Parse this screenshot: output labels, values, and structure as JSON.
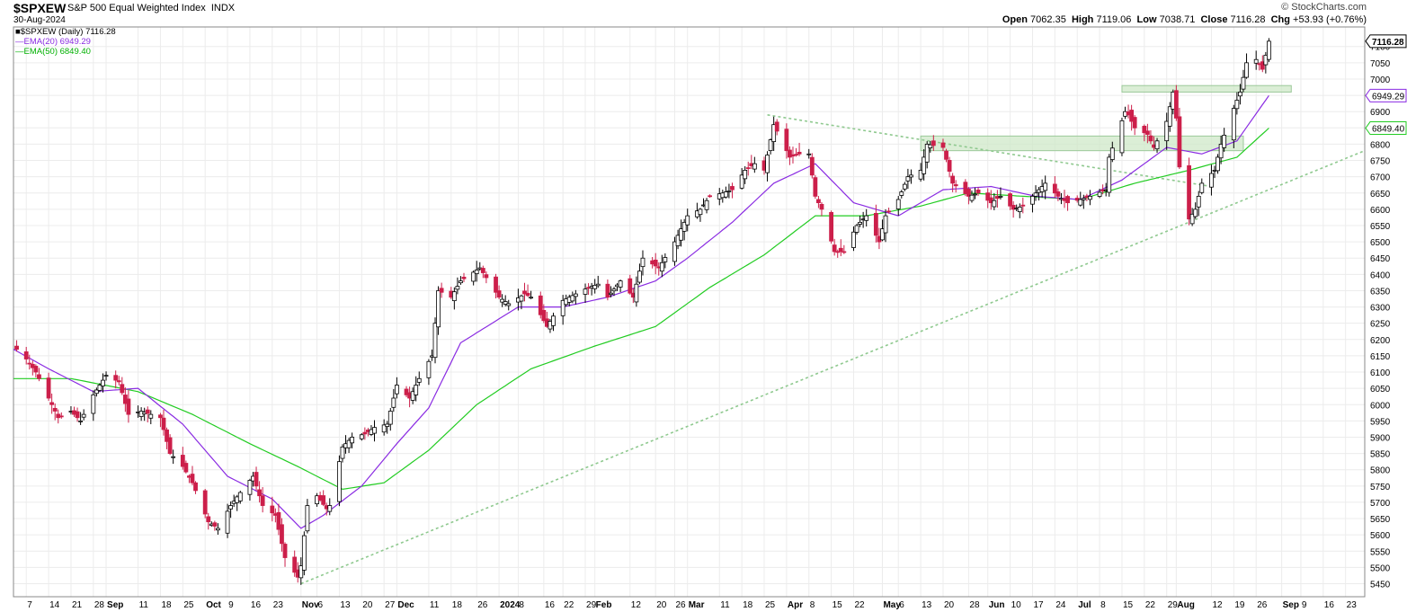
{
  "header": {
    "symbol": "$SPXEW",
    "index_name": "S&P 500 Equal Weighted Index",
    "exchange": "INDX",
    "date": "30-Aug-2024",
    "open_label": "Open",
    "open": "7062.35",
    "high_label": "High",
    "high": "7119.06",
    "low_label": "Low",
    "low": "7038.71",
    "close_label": "Close",
    "close": "7116.28",
    "chg_label": "Chg",
    "chg": "+53.93 (+0.76%)",
    "brand": "© StockCharts.com"
  },
  "legend": {
    "price": "$SPXEW (Daily) 7116.28",
    "ema20": "EMA(20) 6949.29",
    "ema50": "EMA(50) 6849.40"
  },
  "colors": {
    "up": "#000000",
    "down": "#cc1f4a",
    "ema20": "#8a2be2",
    "ema50": "#22cc22",
    "trendline": "#8fc98f",
    "zone": "#cfe8c8",
    "grid": "#ececec"
  },
  "chart_data": {
    "type": "candlestick",
    "title": "$SPXEW S&P 500 Equal Weighted Index INDX",
    "ylim": [
      5410,
      7160
    ],
    "y_ticks": [
      5450,
      5500,
      5550,
      5600,
      5650,
      5700,
      5750,
      5800,
      5850,
      5900,
      5950,
      6000,
      6050,
      6100,
      6150,
      6200,
      6250,
      6300,
      6350,
      6400,
      6450,
      6500,
      6550,
      6600,
      6650,
      6700,
      6750,
      6800,
      6850,
      6900,
      6950,
      7000,
      7050,
      7100
    ],
    "y_badges": [
      {
        "label": "7116.28",
        "value": 7116.28
      },
      {
        "label": "6949.29",
        "value": 6949.29
      },
      {
        "label": "6849.40",
        "value": 6849.4
      }
    ],
    "x_ticks": [
      {
        "label": "7",
        "date": "2023-08-07"
      },
      {
        "label": "14",
        "date": "2023-08-14"
      },
      {
        "label": "21",
        "date": "2023-08-21"
      },
      {
        "label": "28",
        "date": "2023-08-28"
      },
      {
        "label": "Sep",
        "date": "2023-09-01",
        "bold": true
      },
      {
        "label": "11",
        "date": "2023-09-11"
      },
      {
        "label": "18",
        "date": "2023-09-18"
      },
      {
        "label": "25",
        "date": "2023-09-25"
      },
      {
        "label": "Oct",
        "date": "2023-10-02",
        "bold": true
      },
      {
        "label": "9",
        "date": "2023-10-09"
      },
      {
        "label": "16",
        "date": "2023-10-16"
      },
      {
        "label": "23",
        "date": "2023-10-23"
      },
      {
        "label": "Nov",
        "date": "2023-11-01",
        "bold": true
      },
      {
        "label": "6",
        "date": "2023-11-06"
      },
      {
        "label": "13",
        "date": "2023-11-13"
      },
      {
        "label": "20",
        "date": "2023-11-20"
      },
      {
        "label": "27",
        "date": "2023-11-27"
      },
      {
        "label": "Dec",
        "date": "2023-12-01",
        "bold": true
      },
      {
        "label": "11",
        "date": "2023-12-11"
      },
      {
        "label": "18",
        "date": "2023-12-18"
      },
      {
        "label": "26",
        "date": "2023-12-26"
      },
      {
        "label": "2024",
        "date": "2024-01-02",
        "bold": true
      },
      {
        "label": "8",
        "date": "2024-01-08"
      },
      {
        "label": "16",
        "date": "2024-01-16"
      },
      {
        "label": "22",
        "date": "2024-01-22"
      },
      {
        "label": "29",
        "date": "2024-01-29"
      },
      {
        "label": "Feb",
        "date": "2024-02-01",
        "bold": true
      },
      {
        "label": "12",
        "date": "2024-02-12"
      },
      {
        "label": "20",
        "date": "2024-02-20"
      },
      {
        "label": "26",
        "date": "2024-02-26"
      },
      {
        "label": "Mar",
        "date": "2024-03-01",
        "bold": true
      },
      {
        "label": "11",
        "date": "2024-03-11"
      },
      {
        "label": "18",
        "date": "2024-03-18"
      },
      {
        "label": "25",
        "date": "2024-03-25"
      },
      {
        "label": "Apr",
        "date": "2024-04-01",
        "bold": true
      },
      {
        "label": "8",
        "date": "2024-04-08"
      },
      {
        "label": "15",
        "date": "2024-04-15"
      },
      {
        "label": "22",
        "date": "2024-04-22"
      },
      {
        "label": "May",
        "date": "2024-05-01",
        "bold": true
      },
      {
        "label": "6",
        "date": "2024-05-06"
      },
      {
        "label": "13",
        "date": "2024-05-13"
      },
      {
        "label": "20",
        "date": "2024-05-20"
      },
      {
        "label": "28",
        "date": "2024-05-28"
      },
      {
        "label": "Jun",
        "date": "2024-06-03",
        "bold": true
      },
      {
        "label": "10",
        "date": "2024-06-10"
      },
      {
        "label": "17",
        "date": "2024-06-17"
      },
      {
        "label": "24",
        "date": "2024-06-24"
      },
      {
        "label": "Jul",
        "date": "2024-07-01",
        "bold": true
      },
      {
        "label": "8",
        "date": "2024-07-08"
      },
      {
        "label": "15",
        "date": "2024-07-15"
      },
      {
        "label": "22",
        "date": "2024-07-22"
      },
      {
        "label": "29",
        "date": "2024-07-29"
      },
      {
        "label": "Aug",
        "date": "2024-08-01",
        "bold": true
      },
      {
        "label": "12",
        "date": "2024-08-12"
      },
      {
        "label": "19",
        "date": "2024-08-19"
      },
      {
        "label": "26",
        "date": "2024-08-26"
      },
      {
        "label": "Sep",
        "date": "2024-09-03",
        "bold": true
      },
      {
        "label": "9",
        "date": "2024-09-09"
      },
      {
        "label": "16",
        "date": "2024-09-16"
      },
      {
        "label": "23",
        "date": "2024-09-23"
      }
    ],
    "x_range": [
      "2023-08-03",
      "2024-09-29"
    ],
    "price_anchors": [
      [
        "2023-08-03",
        6180
      ],
      [
        "2023-08-07",
        6140
      ],
      [
        "2023-08-10",
        6100
      ],
      [
        "2023-08-14",
        6020
      ],
      [
        "2023-08-17",
        5960
      ],
      [
        "2023-08-21",
        5980
      ],
      [
        "2023-08-24",
        5950
      ],
      [
        "2023-08-28",
        6030
      ],
      [
        "2023-09-01",
        6090
      ],
      [
        "2023-09-05",
        6070
      ],
      [
        "2023-09-08",
        5970
      ],
      [
        "2023-09-12",
        5980
      ],
      [
        "2023-09-15",
        5970
      ],
      [
        "2023-09-18",
        5960
      ],
      [
        "2023-09-21",
        5850
      ],
      [
        "2023-09-25",
        5810
      ],
      [
        "2023-09-28",
        5760
      ],
      [
        "2023-10-03",
        5640
      ],
      [
        "2023-10-06",
        5620
      ],
      [
        "2023-10-10",
        5690
      ],
      [
        "2023-10-13",
        5730
      ],
      [
        "2023-10-17",
        5780
      ],
      [
        "2023-10-20",
        5690
      ],
      [
        "2023-10-24",
        5660
      ],
      [
        "2023-10-27",
        5530
      ],
      [
        "2023-10-31",
        5470
      ],
      [
        "2023-11-01",
        5505
      ],
      [
        "2023-11-03",
        5690
      ],
      [
        "2023-11-06",
        5720
      ],
      [
        "2023-11-09",
        5680
      ],
      [
        "2023-11-10",
        5690
      ],
      [
        "2023-11-14",
        5870
      ],
      [
        "2023-11-17",
        5900
      ],
      [
        "2023-11-21",
        5910
      ],
      [
        "2023-11-24",
        5930
      ],
      [
        "2023-11-28",
        5940
      ],
      [
        "2023-12-01",
        6060
      ],
      [
        "2023-12-05",
        6020
      ],
      [
        "2023-12-08",
        6080
      ],
      [
        "2023-12-12",
        6150
      ],
      [
        "2023-12-14",
        6350
      ],
      [
        "2023-12-18",
        6330
      ],
      [
        "2023-12-21",
        6380
      ],
      [
        "2023-12-27",
        6420
      ],
      [
        "2024-01-02",
        6330
      ],
      [
        "2024-01-05",
        6310
      ],
      [
        "2024-01-10",
        6340
      ],
      [
        "2024-01-12",
        6330
      ],
      [
        "2024-01-17",
        6240
      ],
      [
        "2024-01-22",
        6320
      ],
      [
        "2024-01-26",
        6340
      ],
      [
        "2024-01-30",
        6360
      ],
      [
        "2024-02-02",
        6370
      ],
      [
        "2024-02-05",
        6330
      ],
      [
        "2024-02-09",
        6380
      ],
      [
        "2024-02-13",
        6330
      ],
      [
        "2024-02-16",
        6450
      ],
      [
        "2024-02-21",
        6420
      ],
      [
        "2024-02-26",
        6500
      ],
      [
        "2024-03-01",
        6580
      ],
      [
        "2024-03-05",
        6600
      ],
      [
        "2024-03-08",
        6640
      ],
      [
        "2024-03-12",
        6650
      ],
      [
        "2024-03-15",
        6660
      ],
      [
        "2024-03-19",
        6720
      ],
      [
        "2024-03-22",
        6740
      ],
      [
        "2024-03-25",
        6720
      ],
      [
        "2024-03-28",
        6860
      ],
      [
        "2024-04-02",
        6760
      ],
      [
        "2024-04-05",
        6770
      ],
      [
        "2024-04-08",
        6770
      ],
      [
        "2024-04-10",
        6640
      ],
      [
        "2024-04-12",
        6600
      ],
      [
        "2024-04-16",
        6470
      ],
      [
        "2024-04-19",
        6470
      ],
      [
        "2024-04-23",
        6550
      ],
      [
        "2024-04-26",
        6580
      ],
      [
        "2024-04-30",
        6500
      ],
      [
        "2024-05-02",
        6580
      ],
      [
        "2024-05-06",
        6630
      ],
      [
        "2024-05-09",
        6700
      ],
      [
        "2024-05-13",
        6720
      ],
      [
        "2024-05-15",
        6800
      ],
      [
        "2024-05-20",
        6790
      ],
      [
        "2024-05-23",
        6680
      ],
      [
        "2024-05-28",
        6640
      ],
      [
        "2024-05-31",
        6650
      ],
      [
        "2024-06-04",
        6620
      ],
      [
        "2024-06-07",
        6640
      ],
      [
        "2024-06-11",
        6600
      ],
      [
        "2024-06-14",
        6610
      ],
      [
        "2024-06-18",
        6650
      ],
      [
        "2024-06-21",
        6680
      ],
      [
        "2024-06-25",
        6640
      ],
      [
        "2024-06-28",
        6620
      ],
      [
        "2024-07-02",
        6630
      ],
      [
        "2024-07-05",
        6640
      ],
      [
        "2024-07-10",
        6660
      ],
      [
        "2024-07-11",
        6760
      ],
      [
        "2024-07-16",
        6900
      ],
      [
        "2024-07-17",
        6890
      ],
      [
        "2024-07-19",
        6850
      ],
      [
        "2024-07-23",
        6830
      ],
      [
        "2024-07-25",
        6790
      ],
      [
        "2024-07-29",
        6870
      ],
      [
        "2024-07-31",
        6960
      ],
      [
        "2024-08-01",
        6880
      ],
      [
        "2024-08-02",
        6730
      ],
      [
        "2024-08-05",
        6570
      ],
      [
        "2024-08-07",
        6600
      ],
      [
        "2024-08-09",
        6680
      ],
      [
        "2024-08-13",
        6720
      ],
      [
        "2024-08-15",
        6800
      ],
      [
        "2024-08-19",
        6910
      ],
      [
        "2024-08-21",
        6960
      ],
      [
        "2024-08-23",
        7050
      ],
      [
        "2024-08-26",
        7060
      ],
      [
        "2024-08-28",
        7030
      ],
      [
        "2024-08-30",
        7116.28
      ]
    ],
    "ema20_anchors": [
      [
        "2023-08-03",
        6170
      ],
      [
        "2023-08-14",
        6110
      ],
      [
        "2023-08-28",
        6040
      ],
      [
        "2023-09-11",
        6050
      ],
      [
        "2023-09-25",
        5940
      ],
      [
        "2023-10-09",
        5780
      ],
      [
        "2023-10-23",
        5710
      ],
      [
        "2023-11-01",
        5620
      ],
      [
        "2023-11-08",
        5660
      ],
      [
        "2023-11-20",
        5750
      ],
      [
        "2023-12-01",
        5880
      ],
      [
        "2023-12-11",
        5990
      ],
      [
        "2023-12-21",
        6190
      ],
      [
        "2024-01-08",
        6300
      ],
      [
        "2024-01-22",
        6300
      ],
      [
        "2024-02-05",
        6330
      ],
      [
        "2024-02-20",
        6380
      ],
      [
        "2024-03-01",
        6450
      ],
      [
        "2024-03-15",
        6560
      ],
      [
        "2024-03-28",
        6680
      ],
      [
        "2024-04-10",
        6740
      ],
      [
        "2024-04-22",
        6620
      ],
      [
        "2024-05-06",
        6580
      ],
      [
        "2024-05-20",
        6660
      ],
      [
        "2024-06-04",
        6670
      ],
      [
        "2024-06-18",
        6640
      ],
      [
        "2024-07-02",
        6630
      ],
      [
        "2024-07-15",
        6690
      ],
      [
        "2024-07-29",
        6790
      ],
      [
        "2024-08-09",
        6770
      ],
      [
        "2024-08-20",
        6810
      ],
      [
        "2024-08-30",
        6949.29
      ]
    ],
    "ema50_anchors": [
      [
        "2023-08-03",
        6080
      ],
      [
        "2023-08-21",
        6080
      ],
      [
        "2023-09-11",
        6040
      ],
      [
        "2023-09-28",
        5970
      ],
      [
        "2023-10-16",
        5880
      ],
      [
        "2023-10-31",
        5810
      ],
      [
        "2023-11-14",
        5740
      ],
      [
        "2023-11-27",
        5760
      ],
      [
        "2023-12-11",
        5860
      ],
      [
        "2023-12-26",
        6000
      ],
      [
        "2024-01-12",
        6110
      ],
      [
        "2024-02-01",
        6180
      ],
      [
        "2024-02-20",
        6240
      ],
      [
        "2024-03-08",
        6360
      ],
      [
        "2024-03-25",
        6460
      ],
      [
        "2024-04-10",
        6580
      ],
      [
        "2024-04-26",
        6580
      ],
      [
        "2024-05-13",
        6610
      ],
      [
        "2024-05-28",
        6650
      ],
      [
        "2024-06-14",
        6640
      ],
      [
        "2024-07-02",
        6630
      ],
      [
        "2024-07-19",
        6680
      ],
      [
        "2024-08-05",
        6720
      ],
      [
        "2024-08-20",
        6760
      ],
      [
        "2024-08-30",
        6849.4
      ]
    ],
    "trendlines": [
      {
        "from": [
          "2023-11-01",
          5450
        ],
        "to": [
          "2024-09-29",
          6780
        ]
      },
      {
        "from": [
          "2024-03-26",
          6890
        ],
        "to": [
          "2024-08-12",
          6670
        ]
      }
    ],
    "zones": [
      {
        "from": "2024-05-13",
        "to": "2024-08-22",
        "low": 6780,
        "high": 6825
      },
      {
        "from": "2024-07-15",
        "to": "2024-09-06",
        "low": 6960,
        "high": 6980
      }
    ]
  }
}
